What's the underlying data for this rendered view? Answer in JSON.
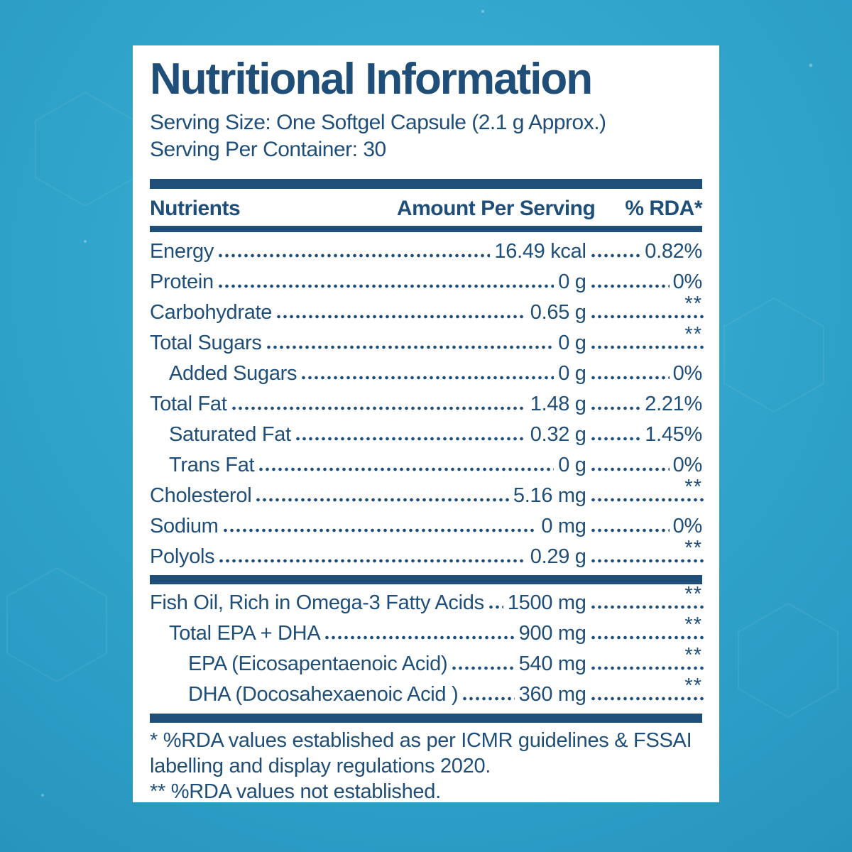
{
  "label": {
    "title": "Nutritional Information",
    "serving_size": "Serving Size: One Softgel Capsule (2.1 g Approx.)",
    "servings_per_container": "Serving Per Container: 30",
    "columns": {
      "nutrient": "Nutrients",
      "amount": "Amount Per Serving",
      "rda": "% RDA*"
    },
    "rows": [
      {
        "name": "Energy",
        "amount": "16.49 kcal",
        "rda": "0.82%",
        "indent": 0,
        "sup": false
      },
      {
        "name": "Protein",
        "amount": "0 g",
        "rda": "0%",
        "indent": 0,
        "sup": false
      },
      {
        "name": "Carbohydrate",
        "amount": "0.65 g",
        "rda": "**",
        "indent": 0,
        "sup": true
      },
      {
        "name": "Total Sugars",
        "amount": "0 g",
        "rda": "**",
        "indent": 0,
        "sup": true
      },
      {
        "name": "Added Sugars",
        "amount": "0 g",
        "rda": "0%",
        "indent": 1,
        "sup": false
      },
      {
        "name": "Total Fat",
        "amount": "1.48 g",
        "rda": "2.21%",
        "indent": 0,
        "sup": false
      },
      {
        "name": "Saturated Fat",
        "amount": "0.32 g",
        "rda": "1.45%",
        "indent": 1,
        "sup": false
      },
      {
        "name": "Trans Fat",
        "amount": "0 g",
        "rda": "0%",
        "indent": 1,
        "sup": false
      },
      {
        "name": "Cholesterol",
        "amount": "5.16 mg",
        "rda": "**",
        "indent": 0,
        "sup": true
      },
      {
        "name": "Sodium",
        "amount": "0 mg",
        "rda": "0%",
        "indent": 0,
        "sup": false
      },
      {
        "name": "Polyols",
        "amount": "0.29 g",
        "rda": "**",
        "indent": 0,
        "sup": true
      }
    ],
    "omega_rows": [
      {
        "name": "Fish Oil, Rich in Omega-3 Fatty Acids",
        "amount": "1500 mg",
        "rda": "**",
        "indent": 0,
        "sup": true
      },
      {
        "name": "Total EPA + DHA",
        "amount": "900 mg",
        "rda": "**",
        "indent": 1,
        "sup": true
      },
      {
        "name": "EPA (Eicosapentaenoic Acid)",
        "amount": "540 mg",
        "rda": "**",
        "indent": 2,
        "sup": true
      },
      {
        "name": "DHA (Docosahexaenoic Acid )",
        "amount": "360 mg",
        "rda": "**",
        "indent": 2,
        "sup": true
      }
    ],
    "footnotes": [
      "* %RDA values established as per ICMR guidelines & FSSAI labelling and display regulations 2020.",
      "** %RDA values not established."
    ],
    "colors": {
      "navy": "#1f4e78",
      "background_blue": "#2fa3ca",
      "card": "#ffffff"
    }
  }
}
